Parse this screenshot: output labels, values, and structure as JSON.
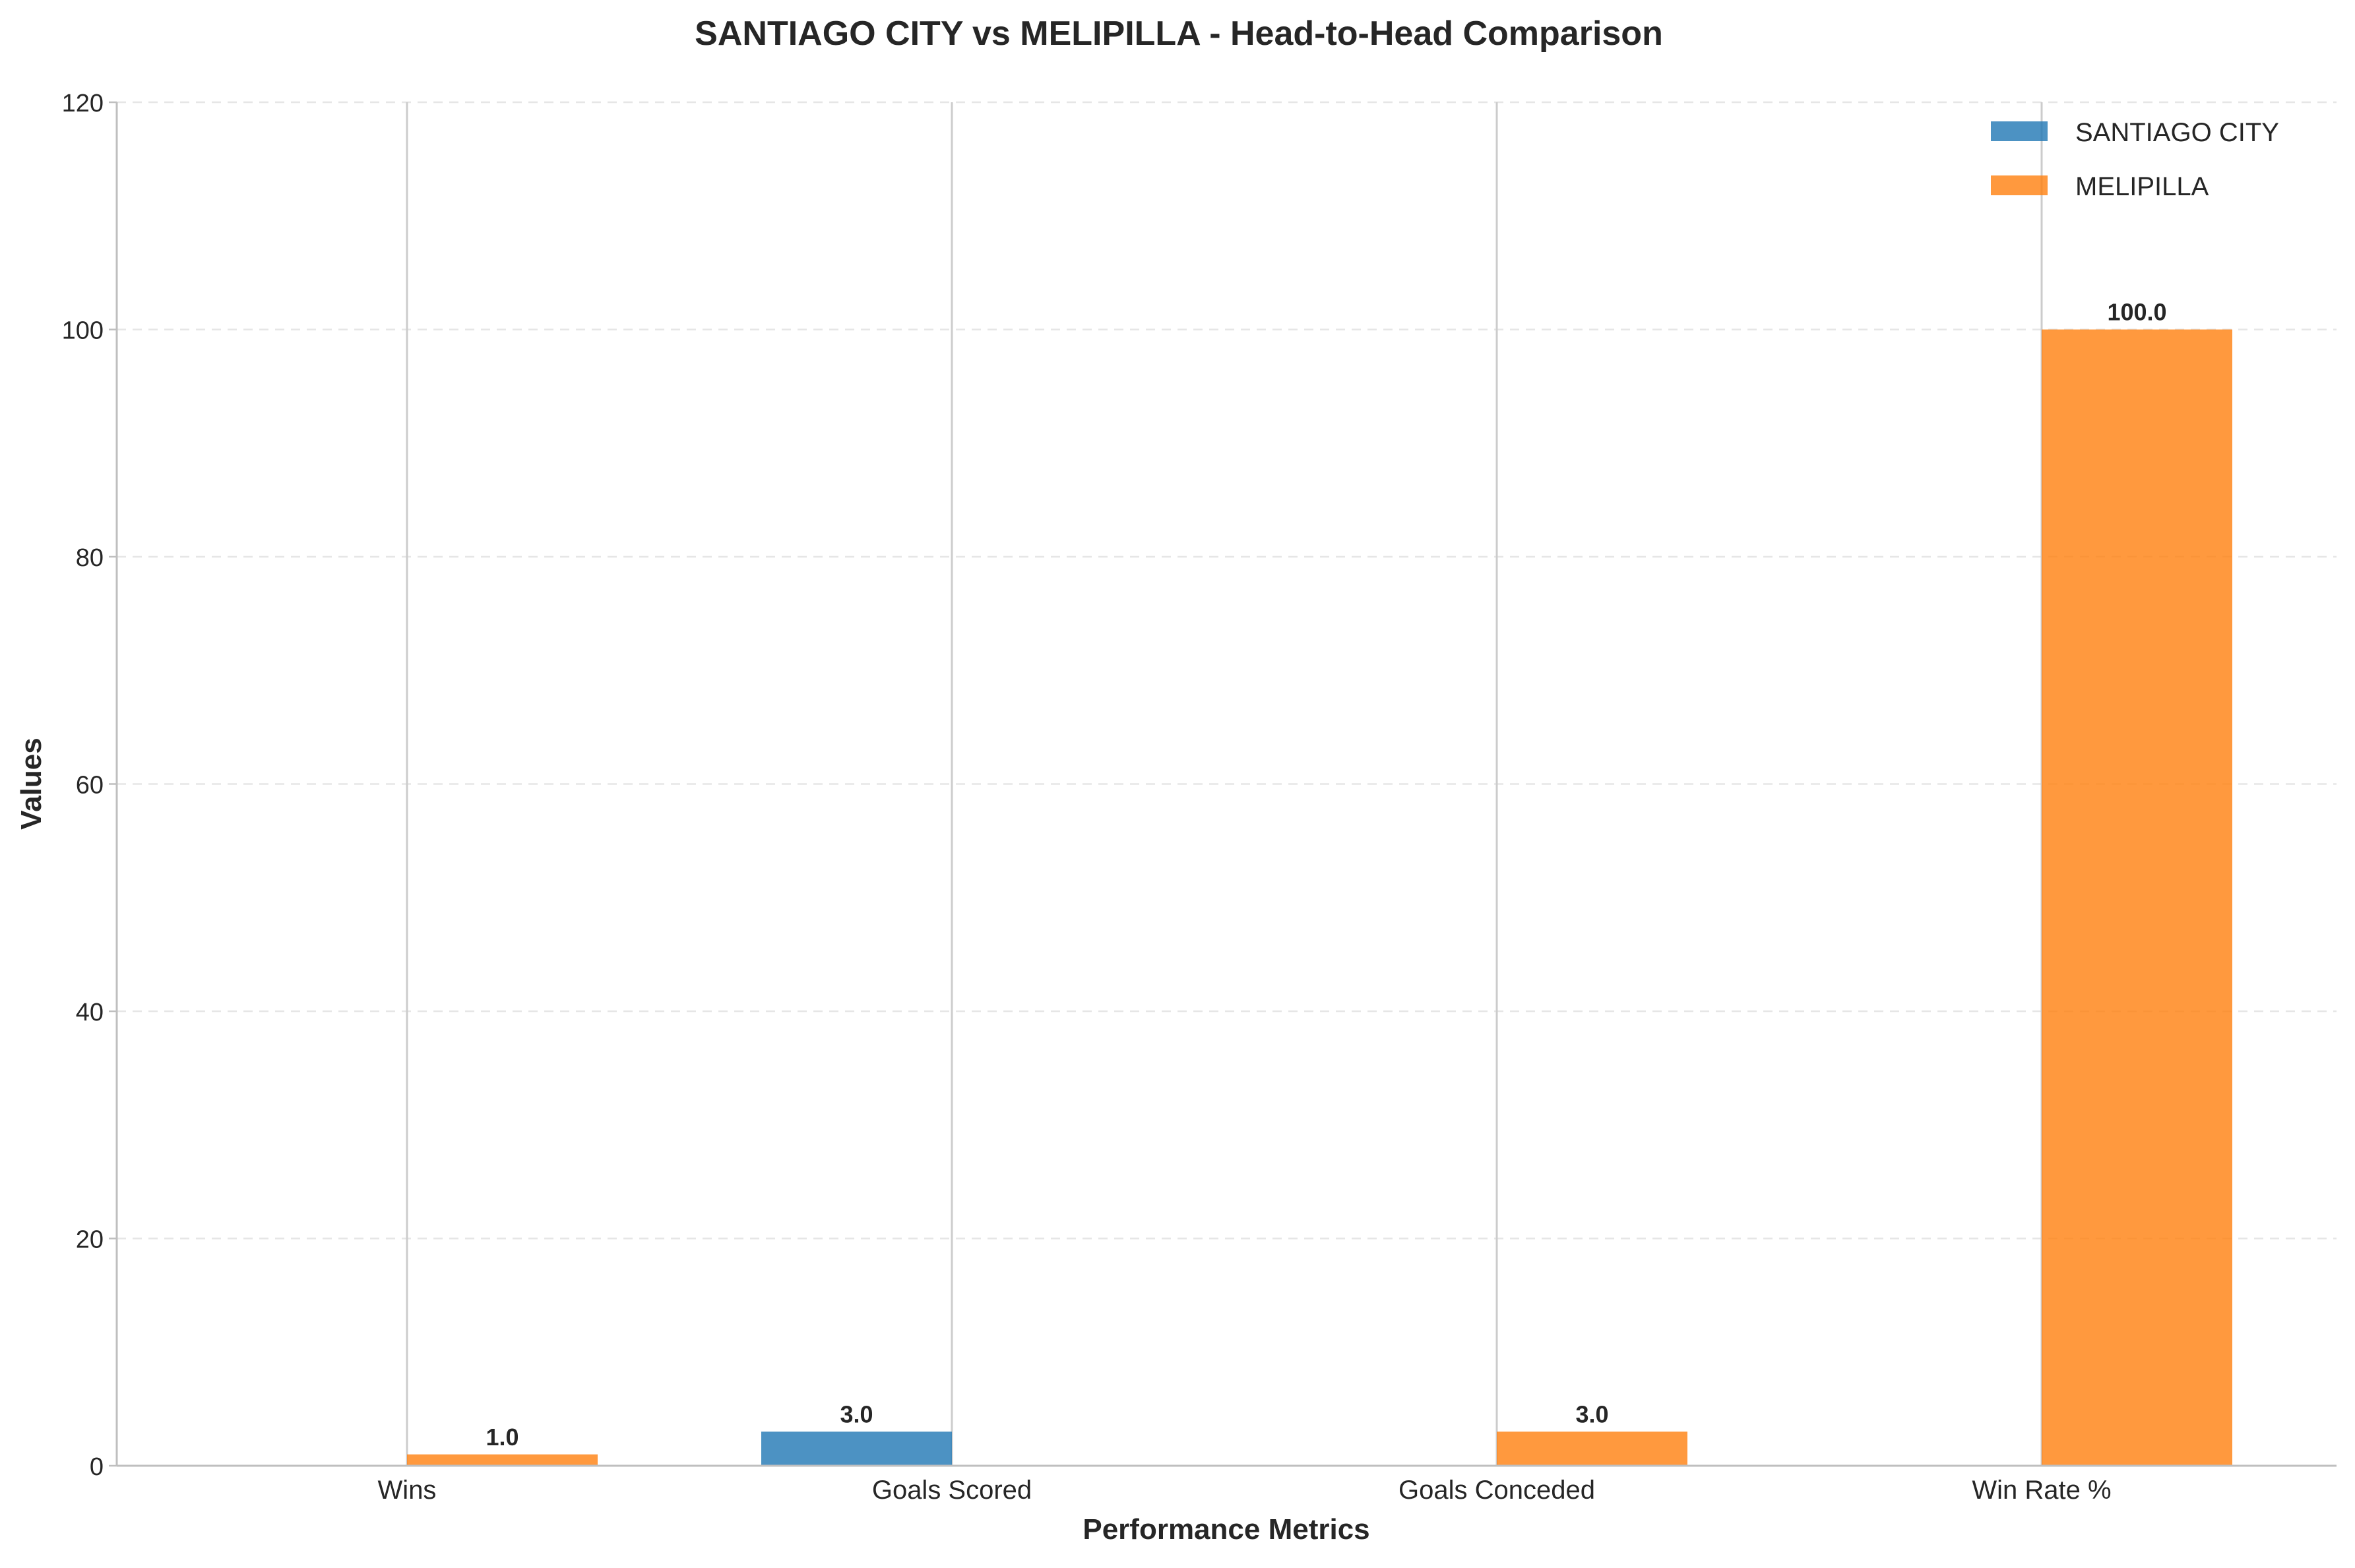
{
  "chart_data": {
    "type": "bar",
    "title": "SANTIAGO CITY vs MELIPILLA - Head-to-Head Comparison",
    "xlabel": "Performance Metrics",
    "ylabel": "Values",
    "categories": [
      "Wins",
      "Goals Scored",
      "Goals Conceded",
      "Win Rate %"
    ],
    "series": [
      {
        "name": "SANTIAGO CITY",
        "color": "#1f77b4",
        "values": [
          0,
          3,
          0,
          0
        ],
        "labels": [
          "",
          "3.0",
          "",
          ""
        ]
      },
      {
        "name": "MELIPILLA",
        "color": "#ff7f0e",
        "values": [
          1,
          0,
          3,
          100
        ],
        "labels": [
          "1.0",
          "",
          "3.0",
          "100.0"
        ]
      }
    ],
    "ylim": [
      0,
      120
    ],
    "yticks": [
      0,
      20,
      40,
      60,
      80,
      100,
      120
    ],
    "grid": "y-dashed",
    "legend": "top-right"
  }
}
